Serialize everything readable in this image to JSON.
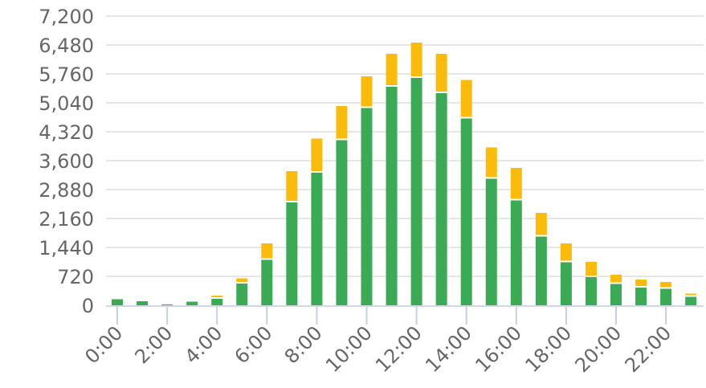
{
  "chart_data": {
    "type": "bar",
    "stacked": true,
    "categories": [
      "0:00",
      "1:00",
      "2:00",
      "3:00",
      "4:00",
      "5:00",
      "6:00",
      "7:00",
      "8:00",
      "9:00",
      "10:00",
      "11:00",
      "12:00",
      "13:00",
      "14:00",
      "15:00",
      "16:00",
      "17:00",
      "18:00",
      "19:00",
      "20:00",
      "21:00",
      "22:00",
      "23:00"
    ],
    "x_tick_labels": [
      "0:00",
      "2:00",
      "4:00",
      "6:00",
      "8:00",
      "10:00",
      "12:00",
      "14:00",
      "16:00",
      "18:00",
      "20:00",
      "22:00"
    ],
    "y_tick_labels": [
      "0",
      "720",
      "1,440",
      "2,160",
      "2,880",
      "3,600",
      "4,320",
      "5,040",
      "5,760",
      "6,480",
      "7,200"
    ],
    "ylim": [
      0,
      7200
    ],
    "grid": true,
    "legend": "none",
    "title": "",
    "xlabel": "",
    "ylabel": "",
    "series": [
      {
        "color": "#3aaa55",
        "values": [
          150,
          100,
          20,
          90,
          160,
          540,
          1130,
          2560,
          3300,
          4110,
          4910,
          5440,
          5660,
          5280,
          4650,
          3150,
          2610,
          1710,
          1070,
          700,
          530,
          440,
          410,
          210
        ]
      },
      {
        "color": "#fbbb0a",
        "values": [
          0,
          0,
          0,
          0,
          80,
          130,
          410,
          780,
          850,
          850,
          790,
          820,
          880,
          980,
          960,
          780,
          810,
          590,
          470,
          380,
          230,
          200,
          170,
          80
        ]
      }
    ]
  }
}
